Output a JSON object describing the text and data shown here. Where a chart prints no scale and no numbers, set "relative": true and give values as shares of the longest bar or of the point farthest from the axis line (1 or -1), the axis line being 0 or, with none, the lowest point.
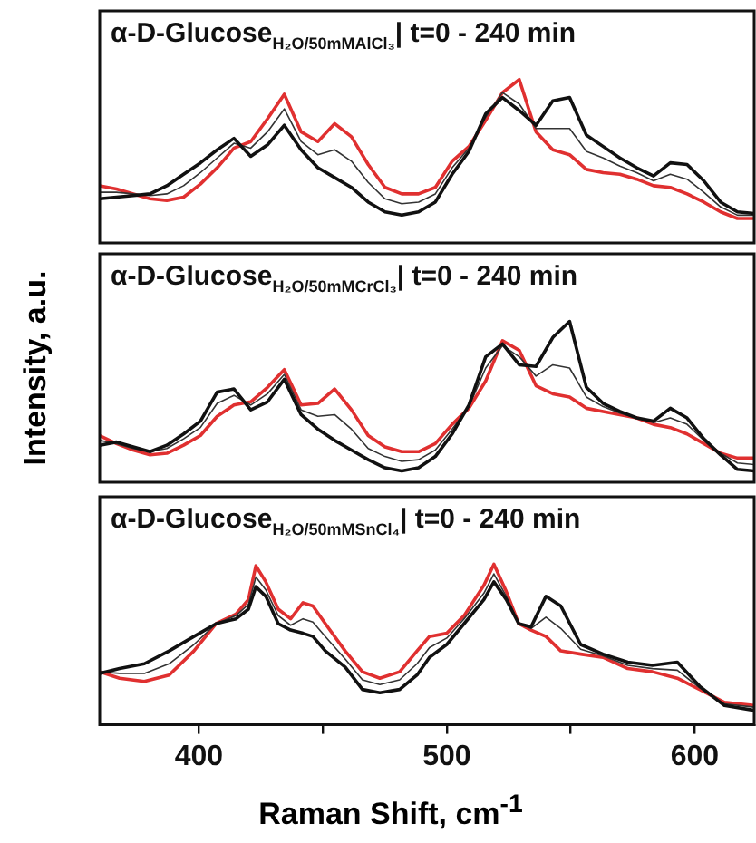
{
  "chart_data": [
    {
      "type": "line",
      "title": "α-D-Glucose$_{H₂O/50mMAlCl₃}$| t=0 - 240 min",
      "relative": true,
      "marker": "none",
      "tick_labels": false,
      "categories": [
        null,
        null,
        null,
        null,
        null,
        null,
        null,
        null,
        null,
        null,
        null,
        null,
        null,
        null,
        null,
        null,
        null,
        null,
        null,
        null,
        null,
        null,
        null,
        null,
        null,
        null,
        null,
        null,
        null,
        null,
        null,
        null,
        null,
        null,
        null,
        null,
        null,
        null,
        null,
        null
      ],
      "series": [
        {
          "color": "#111111",
          "values": [
            0.27,
            0.28,
            0.29,
            0.3,
            0.35,
            0.42,
            0.49,
            0.57,
            0.64,
            0.53,
            0.6,
            0.72,
            0.57,
            0.46,
            0.4,
            0.34,
            0.25,
            0.19,
            0.17,
            0.19,
            0.25,
            0.42,
            0.56,
            0.79,
            0.89,
            0.81,
            0.72,
            0.87,
            0.89,
            0.66,
            0.59,
            0.52,
            0.46,
            0.41,
            0.49,
            0.48,
            0.38,
            0.25,
            0.19,
            0.18
          ]
        },
        {
          "color": "#333333",
          "values": [
            0.31,
            0.31,
            0.3,
            0.29,
            0.3,
            0.35,
            0.43,
            0.52,
            0.61,
            0.58,
            0.68,
            0.82,
            0.62,
            0.54,
            0.57,
            0.5,
            0.37,
            0.27,
            0.24,
            0.25,
            0.3,
            0.46,
            0.58,
            0.77,
            0.92,
            0.85,
            0.7,
            0.7,
            0.7,
            0.56,
            0.52,
            0.47,
            0.43,
            0.38,
            0.42,
            0.39,
            0.31,
            0.22,
            0.17,
            0.17
          ]
        },
        {
          "color": "#e03030",
          "values": [
            0.35,
            0.33,
            0.3,
            0.27,
            0.26,
            0.28,
            0.36,
            0.46,
            0.58,
            0.62,
            0.76,
            0.91,
            0.68,
            0.62,
            0.73,
            0.65,
            0.48,
            0.34,
            0.3,
            0.3,
            0.34,
            0.5,
            0.59,
            0.75,
            0.92,
            1.0,
            0.68,
            0.57,
            0.54,
            0.45,
            0.43,
            0.42,
            0.39,
            0.35,
            0.34,
            0.3,
            0.25,
            0.19,
            0.15,
            0.15
          ]
        }
      ]
    },
    {
      "type": "line",
      "title": "α-D-Glucose$_{H₂O/50mMCrCl₃}$| t=0 - 240 min",
      "ylabel": "Intensity, a.u.",
      "relative": true,
      "marker": "none",
      "tick_labels": false,
      "categories": [
        null,
        null,
        null,
        null,
        null,
        null,
        null,
        null,
        null,
        null,
        null,
        null,
        null,
        null,
        null,
        null,
        null,
        null,
        null,
        null,
        null,
        null,
        null,
        null,
        null,
        null,
        null,
        null,
        null,
        null,
        null,
        null,
        null,
        null,
        null,
        null,
        null,
        null,
        null,
        null
      ],
      "series": [
        {
          "color": "#111111",
          "values": [
            0.23,
            0.25,
            0.22,
            0.19,
            0.23,
            0.3,
            0.38,
            0.56,
            0.58,
            0.45,
            0.5,
            0.64,
            0.42,
            0.33,
            0.26,
            0.2,
            0.14,
            0.09,
            0.07,
            0.09,
            0.16,
            0.3,
            0.48,
            0.78,
            0.86,
            0.73,
            0.72,
            0.9,
            1.0,
            0.59,
            0.49,
            0.44,
            0.4,
            0.38,
            0.46,
            0.4,
            0.27,
            0.17,
            0.08,
            0.07
          ]
        },
        {
          "color": "#333333",
          "values": [
            0.26,
            0.24,
            0.21,
            0.19,
            0.21,
            0.27,
            0.34,
            0.49,
            0.54,
            0.48,
            0.55,
            0.67,
            0.45,
            0.41,
            0.42,
            0.33,
            0.21,
            0.16,
            0.13,
            0.14,
            0.2,
            0.33,
            0.47,
            0.71,
            0.85,
            0.78,
            0.66,
            0.73,
            0.71,
            0.53,
            0.47,
            0.43,
            0.4,
            0.37,
            0.4,
            0.36,
            0.26,
            0.18,
            0.12,
            0.11
          ]
        },
        {
          "color": "#e03030",
          "values": [
            0.29,
            0.24,
            0.2,
            0.17,
            0.18,
            0.23,
            0.29,
            0.41,
            0.48,
            0.5,
            0.59,
            0.7,
            0.48,
            0.49,
            0.58,
            0.45,
            0.29,
            0.22,
            0.19,
            0.19,
            0.24,
            0.36,
            0.46,
            0.63,
            0.88,
            0.82,
            0.6,
            0.55,
            0.53,
            0.46,
            0.44,
            0.42,
            0.4,
            0.36,
            0.34,
            0.3,
            0.24,
            0.18,
            0.15,
            0.15
          ]
        }
      ]
    },
    {
      "type": "line",
      "title": "α-D-Glucose$_{H₂O/50mMSnCl₄}$| t=0 - 240 min",
      "xlabel": "Raman Shift, cm$^{-1}$",
      "relative": true,
      "marker": "none",
      "tick_labels": "x",
      "x": [
        360,
        368,
        378,
        388,
        398,
        407,
        415,
        420,
        423,
        427,
        432,
        437,
        442,
        446,
        451,
        459,
        466,
        473,
        481,
        488,
        493,
        500,
        507,
        515,
        519,
        524,
        529,
        534,
        540,
        546,
        554,
        563,
        573,
        583,
        593,
        602,
        612,
        624
      ],
      "xlim": [
        360,
        624
      ],
      "xticks": [
        400,
        {
          "value": 450,
          "label": null
        },
        500,
        {
          "value": 550,
          "label": null
        },
        600
      ],
      "series": [
        {
          "color": "#111111",
          "values": [
            0.32,
            0.35,
            0.38,
            0.46,
            0.55,
            0.63,
            0.66,
            0.72,
            0.86,
            0.8,
            0.63,
            0.59,
            0.57,
            0.55,
            0.46,
            0.36,
            0.22,
            0.2,
            0.22,
            0.31,
            0.42,
            0.5,
            0.63,
            0.78,
            0.89,
            0.78,
            0.63,
            0.61,
            0.8,
            0.74,
            0.5,
            0.44,
            0.39,
            0.37,
            0.39,
            0.24,
            0.12,
            0.09
          ]
        },
        {
          "color": "#333333",
          "values": [
            0.33,
            0.32,
            0.32,
            0.38,
            0.5,
            0.63,
            0.68,
            0.75,
            0.92,
            0.84,
            0.68,
            0.62,
            0.66,
            0.64,
            0.55,
            0.41,
            0.28,
            0.25,
            0.28,
            0.38,
            0.48,
            0.54,
            0.66,
            0.82,
            0.94,
            0.8,
            0.63,
            0.6,
            0.67,
            0.6,
            0.47,
            0.43,
            0.37,
            0.35,
            0.34,
            0.23,
            0.13,
            0.11
          ]
        },
        {
          "color": "#e03030",
          "values": [
            0.33,
            0.29,
            0.27,
            0.31,
            0.46,
            0.63,
            0.69,
            0.78,
            0.99,
            0.89,
            0.72,
            0.66,
            0.76,
            0.74,
            0.63,
            0.46,
            0.33,
            0.29,
            0.33,
            0.46,
            0.55,
            0.57,
            0.68,
            0.87,
            1.0,
            0.83,
            0.63,
            0.59,
            0.55,
            0.46,
            0.44,
            0.42,
            0.35,
            0.33,
            0.29,
            0.22,
            0.14,
            0.12
          ]
        }
      ]
    }
  ]
}
